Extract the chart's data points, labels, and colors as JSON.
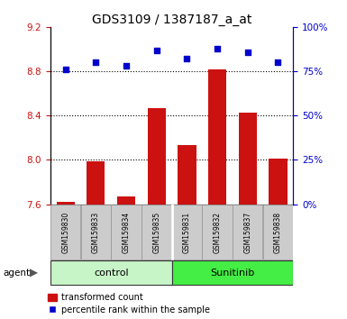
{
  "title": "GDS3109 / 1387187_a_at",
  "samples": [
    "GSM159830",
    "GSM159833",
    "GSM159834",
    "GSM159835",
    "GSM159831",
    "GSM159832",
    "GSM159837",
    "GSM159838"
  ],
  "bar_values": [
    7.62,
    7.99,
    7.67,
    8.47,
    8.13,
    8.82,
    8.43,
    8.01
  ],
  "dot_values": [
    76,
    80,
    78,
    87,
    82,
    88,
    86,
    80
  ],
  "ylim_left": [
    7.6,
    9.2
  ],
  "ylim_right": [
    0,
    100
  ],
  "yticks_left": [
    7.6,
    8.0,
    8.4,
    8.8,
    9.2
  ],
  "yticks_right": [
    0,
    25,
    50,
    75,
    100
  ],
  "groups": [
    {
      "label": "control",
      "indices": [
        0,
        1,
        2,
        3
      ],
      "color": "#c8f5c8"
    },
    {
      "label": "Sunitinib",
      "indices": [
        4,
        5,
        6,
        7
      ],
      "color": "#44ee44"
    }
  ],
  "bar_color": "#cc1111",
  "dot_color": "#0000cc",
  "bar_width": 0.6,
  "bg_xtick": "#cccccc",
  "left_axis_color": "#cc1111",
  "right_axis_color": "#0000cc",
  "ybase": 7.6,
  "legend_bar": "transformed count",
  "legend_dot": "percentile rank within the sample",
  "title_fontsize": 10,
  "tick_fontsize": 7.5,
  "sample_fontsize": 5.5,
  "group_fontsize": 8,
  "legend_fontsize": 7
}
